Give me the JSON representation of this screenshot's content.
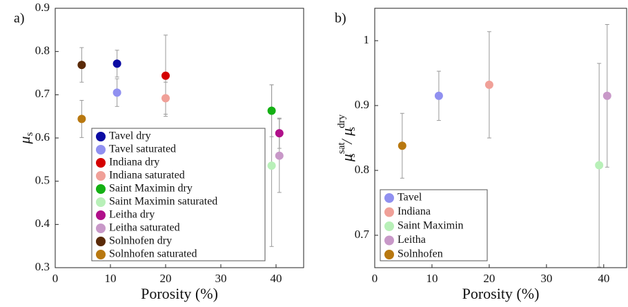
{
  "chart_data": [
    {
      "type": "scatter",
      "panel": "a)",
      "xlabel": "Porosity (%)",
      "ylabel": [
        "μ",
        "s"
      ],
      "xlim": [
        0,
        45
      ],
      "ylim": [
        0.3,
        0.9
      ],
      "xticks": [
        0,
        10,
        20,
        30,
        40
      ],
      "yticks": [
        0.3,
        0.4,
        0.5,
        0.6,
        0.7,
        0.8,
        0.9
      ],
      "series": [
        {
          "name": "Tavel dry",
          "color": "#0b0ba3",
          "x": [
            11.2
          ],
          "values": [
            0.772
          ],
          "errors": [
            0.031
          ]
        },
        {
          "name": "Tavel saturated",
          "color": "#9090f0",
          "x": [
            11.2
          ],
          "values": [
            0.705
          ],
          "errors": [
            0.032
          ]
        },
        {
          "name": "Indiana dry",
          "color": "#d40000",
          "x": [
            20
          ],
          "values": [
            0.744
          ],
          "errors": [
            0.094
          ]
        },
        {
          "name": "Indiana saturated",
          "color": "#f0a098",
          "x": [
            20
          ],
          "values": [
            0.692
          ],
          "errors": [
            0.037
          ]
        },
        {
          "name": "Saint Maximin dry",
          "color": "#14b014",
          "x": [
            39.2
          ],
          "values": [
            0.663
          ],
          "errors": [
            0.06
          ]
        },
        {
          "name": "Saint Maximin saturated",
          "color": "#b8f0b8",
          "x": [
            39.2
          ],
          "values": [
            0.536
          ],
          "errors": [
            0.187
          ]
        },
        {
          "name": "Leitha dry",
          "color": "#b0108a",
          "x": [
            40.6
          ],
          "values": [
            0.611
          ],
          "errors": [
            0.035
          ]
        },
        {
          "name": "Leitha saturated",
          "color": "#c898c8",
          "x": [
            40.6
          ],
          "values": [
            0.559
          ],
          "errors": [
            0.085
          ]
        },
        {
          "name": "Solnhofen dry",
          "color": "#5a2a08",
          "x": [
            4.8
          ],
          "values": [
            0.769
          ],
          "errors": [
            0.04
          ]
        },
        {
          "name": "Solnhofen saturated",
          "color": "#b87810",
          "x": [
            4.8
          ],
          "values": [
            0.644
          ],
          "errors": [
            0.043
          ]
        }
      ]
    },
    {
      "type": "scatter",
      "panel": "b)",
      "xlabel": "Porosity (%)",
      "ylabel": [
        "μ",
        "sat",
        "s",
        "/ μ",
        "dry",
        "s"
      ],
      "xlim": [
        0,
        44
      ],
      "ylim": [
        0.65,
        1.05
      ],
      "xticks": [
        0,
        10,
        20,
        30,
        40
      ],
      "yticks": [
        0.7,
        0.8,
        0.9,
        1
      ],
      "series": [
        {
          "name": "Tavel",
          "color": "#9090f0",
          "x": [
            11.2
          ],
          "values": [
            0.915
          ],
          "errors": [
            0.038
          ]
        },
        {
          "name": "Indiana",
          "color": "#f0a098",
          "x": [
            20
          ],
          "values": [
            0.932
          ],
          "errors": [
            0.082
          ]
        },
        {
          "name": "Saint Maximin",
          "color": "#b8f0b8",
          "x": [
            39.2
          ],
          "values": [
            0.808
          ],
          "errors": [
            0.157
          ]
        },
        {
          "name": "Leitha",
          "color": "#c898c8",
          "x": [
            40.6
          ],
          "values": [
            0.915
          ],
          "errors": [
            0.11
          ]
        },
        {
          "name": "Solnhofen",
          "color": "#b87810",
          "x": [
            4.8
          ],
          "values": [
            0.838
          ],
          "errors": [
            0.05
          ]
        }
      ]
    }
  ]
}
